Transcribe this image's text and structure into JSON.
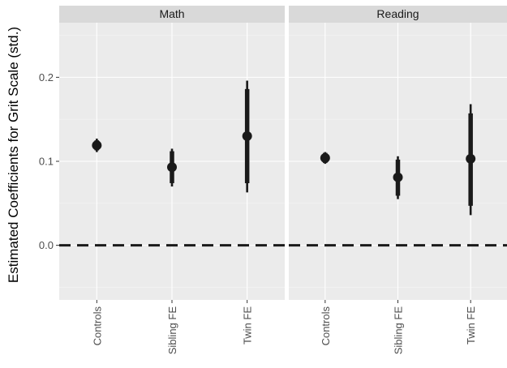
{
  "chart_data": {
    "type": "pointrange",
    "ylabel": "Estimated Coefficients for Grit Scale (std.)",
    "xlabel": "",
    "ylim": [
      -0.065,
      0.265
    ],
    "y_ticks": [
      0.0,
      0.1,
      0.2
    ],
    "y_tick_labels": [
      "0.0",
      "0.1",
      "0.2"
    ],
    "categories": [
      "Controls",
      "Sibling FE",
      "Twin FE"
    ],
    "reference_line": 0.0,
    "grid": true,
    "panels": [
      {
        "name": "Math",
        "points": [
          {
            "category": "Controls",
            "estimate": 0.119,
            "ci95": [
              0.111,
              0.127
            ],
            "ci90": [
              0.113,
              0.125
            ]
          },
          {
            "category": "Sibling FE",
            "estimate": 0.093,
            "ci95": [
              0.07,
              0.115
            ],
            "ci90": [
              0.074,
              0.112
            ]
          },
          {
            "category": "Twin FE",
            "estimate": 0.13,
            "ci95": [
              0.063,
              0.196
            ],
            "ci90": [
              0.074,
              0.186
            ]
          }
        ]
      },
      {
        "name": "Reading",
        "points": [
          {
            "category": "Controls",
            "estimate": 0.104,
            "ci95": [
              0.097,
              0.111
            ],
            "ci90": [
              0.098,
              0.11
            ]
          },
          {
            "category": "Sibling FE",
            "estimate": 0.081,
            "ci95": [
              0.055,
              0.106
            ],
            "ci90": [
              0.059,
              0.102
            ]
          },
          {
            "category": "Twin FE",
            "estimate": 0.103,
            "ci95": [
              0.036,
              0.168
            ],
            "ci90": [
              0.047,
              0.157
            ]
          }
        ]
      }
    ]
  }
}
